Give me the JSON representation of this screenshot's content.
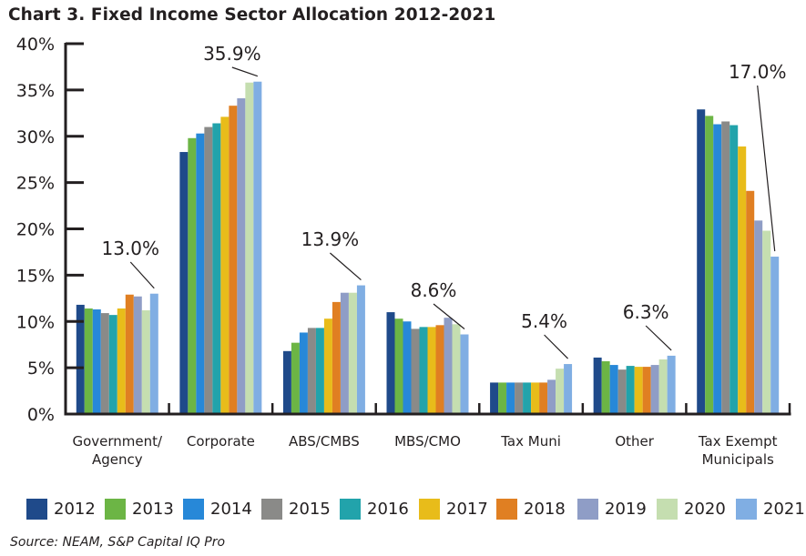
{
  "title": "Chart 3. Fixed Income Sector Allocation 2012-2021",
  "source": "Source: NEAM, S&P Capital IQ Pro",
  "chart_data": {
    "type": "bar",
    "title": "Chart 3. Fixed Income Sector Allocation 2012-2021",
    "xlabel": "",
    "ylabel": "",
    "ylim": [
      0,
      40
    ],
    "yticks": [
      0,
      5,
      10,
      15,
      20,
      25,
      30,
      35,
      40
    ],
    "ytick_labels": [
      "0%",
      "5%",
      "10%",
      "15%",
      "20%",
      "25%",
      "30%",
      "35%",
      "40%"
    ],
    "grid": false,
    "legend_position": "bottom",
    "categories": [
      [
        "Government/",
        "Agency"
      ],
      [
        "Corporate"
      ],
      [
        "ABS/CMBS"
      ],
      [
        "MBS/CMO"
      ],
      [
        "Tax Muni"
      ],
      [
        "Other"
      ],
      [
        "Tax Exempt",
        "Municipals"
      ]
    ],
    "series": [
      {
        "name": "2012",
        "color": "#1f4a8a",
        "values": [
          11.8,
          28.3,
          6.8,
          11.0,
          3.4,
          6.1,
          32.9
        ]
      },
      {
        "name": "2013",
        "color": "#6cb545",
        "values": [
          11.4,
          29.8,
          7.7,
          10.3,
          3.4,
          5.7,
          32.2
        ]
      },
      {
        "name": "2014",
        "color": "#2788d8",
        "values": [
          11.3,
          30.3,
          8.8,
          10.0,
          3.4,
          5.3,
          31.3
        ]
      },
      {
        "name": "2015",
        "color": "#8a8a88",
        "values": [
          10.9,
          31.0,
          9.3,
          9.2,
          3.4,
          4.8,
          31.6
        ]
      },
      {
        "name": "2016",
        "color": "#22a3ab",
        "values": [
          10.7,
          31.4,
          9.3,
          9.4,
          3.4,
          5.2,
          31.2
        ]
      },
      {
        "name": "2017",
        "color": "#e8bc1a",
        "values": [
          11.4,
          32.1,
          10.3,
          9.4,
          3.4,
          5.1,
          28.9
        ]
      },
      {
        "name": "2018",
        "color": "#e07f22",
        "values": [
          12.9,
          33.3,
          12.1,
          9.6,
          3.4,
          5.1,
          24.1
        ]
      },
      {
        "name": "2019",
        "color": "#8f9dc6",
        "values": [
          12.7,
          34.1,
          13.1,
          10.4,
          3.7,
          5.3,
          20.9
        ]
      },
      {
        "name": "2020",
        "color": "#c5deb0",
        "values": [
          11.2,
          35.8,
          13.1,
          9.7,
          4.9,
          5.9,
          19.8
        ]
      },
      {
        "name": "2021",
        "color": "#80aee3",
        "values": [
          13.0,
          35.9,
          13.9,
          8.6,
          5.4,
          6.3,
          17.0
        ]
      }
    ],
    "annotations": [
      {
        "category_index": 0,
        "series": "2021",
        "text": "13.0%"
      },
      {
        "category_index": 1,
        "series": "2021",
        "text": "35.9%"
      },
      {
        "category_index": 2,
        "series": "2021",
        "text": "13.9%"
      },
      {
        "category_index": 3,
        "series": "2021",
        "text": "8.6%"
      },
      {
        "category_index": 4,
        "series": "2021",
        "text": "5.4%"
      },
      {
        "category_index": 5,
        "series": "2021",
        "text": "6.3%"
      },
      {
        "category_index": 6,
        "series": "2021",
        "text": "17.0%"
      }
    ]
  }
}
